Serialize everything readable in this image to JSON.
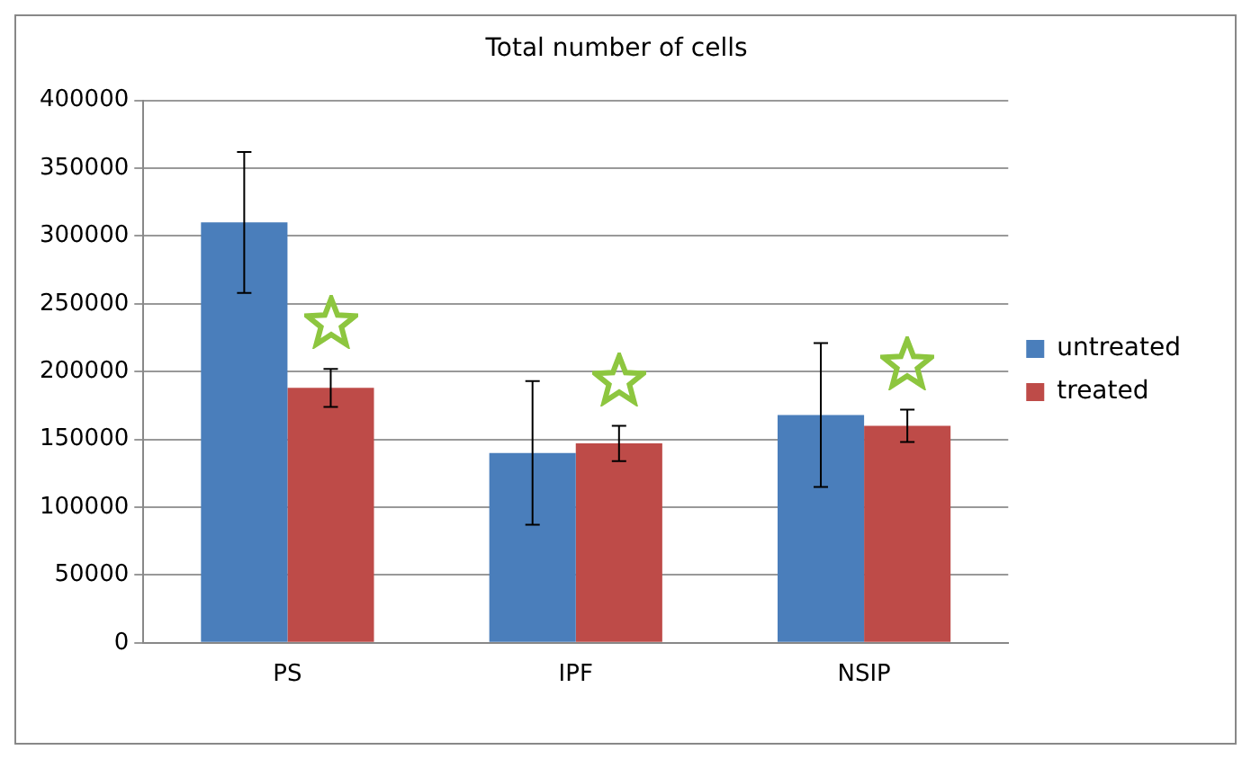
{
  "chart_data": {
    "type": "bar",
    "title": "Total number of cells",
    "categories": [
      "PS",
      "IPF",
      "NSIP"
    ],
    "series": [
      {
        "name": "untreated",
        "color": "#4a7ebb",
        "values": [
          310000,
          140000,
          168000
        ],
        "errors": [
          52000,
          53000,
          53000
        ]
      },
      {
        "name": "treated",
        "color": "#be4b48",
        "values": [
          188000,
          147000,
          160000
        ],
        "errors": [
          14000,
          13000,
          12000
        ]
      }
    ],
    "ylim": [
      0,
      400000
    ],
    "yticks": [
      0,
      50000,
      100000,
      150000,
      200000,
      250000,
      300000,
      350000,
      400000
    ],
    "grid": "y",
    "legend": "right"
  }
}
